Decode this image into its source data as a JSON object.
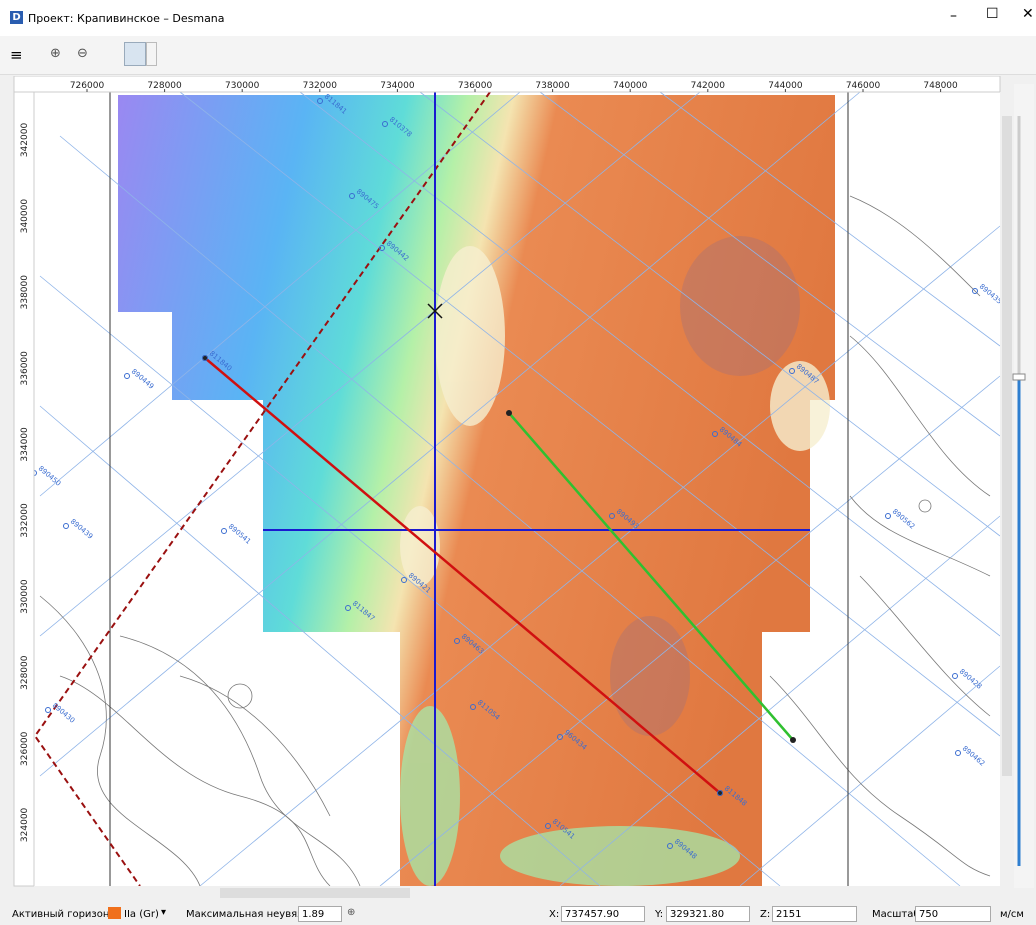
{
  "window": {
    "title": "Проект: Крапивинское – Desmana"
  },
  "ruler": {
    "x_labels": [
      "726000",
      "728000",
      "730000",
      "732000",
      "734000",
      "736000",
      "738000",
      "740000",
      "742000",
      "744000",
      "746000",
      "748000"
    ],
    "y_labels": [
      "342000",
      "340000",
      "338000",
      "336000",
      "334000",
      "332000",
      "330000",
      "328000",
      "326000",
      "324000"
    ]
  },
  "wells": [
    "811840",
    "811848",
    "811847",
    "890421",
    "890449",
    "890450",
    "890439",
    "890541",
    "890442",
    "890475",
    "810378",
    "811841",
    "890463",
    "811054",
    "960434",
    "810541",
    "890448",
    "890562",
    "890487",
    "890484",
    "890493",
    "890428",
    "890462",
    "890435",
    "890430"
  ],
  "status": {
    "horizon_label": "Активный горизонт:",
    "horizon": "IIa (Gr)",
    "misfit_label": "Максимальная неувязка:",
    "misfit": "1.89",
    "x_label": "X:",
    "x": "737457.90",
    "y_label": "Y:",
    "y": "329321.80",
    "z_label": "Z:",
    "z": "2151",
    "scale_label": "Масштаб:",
    "scale": "750",
    "scale_unit": "м/см"
  }
}
